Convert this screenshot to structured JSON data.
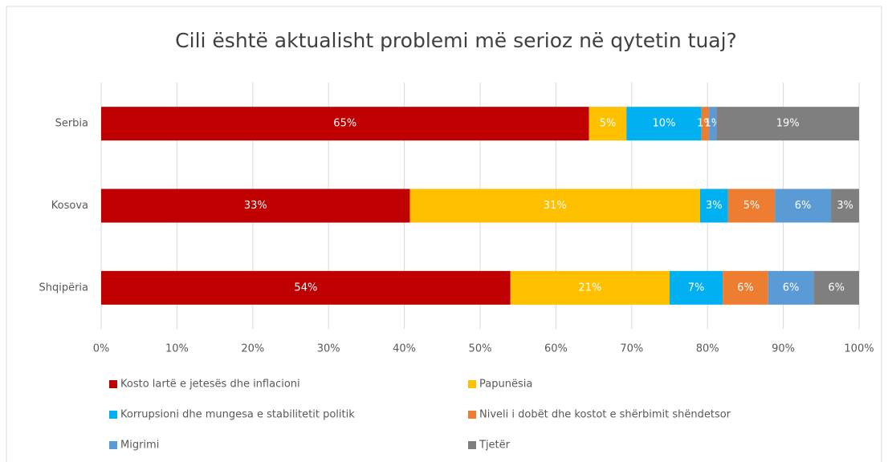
{
  "chart_data": {
    "type": "bar",
    "orientation": "horizontal",
    "stacking": "percent",
    "title": "Cili është aktualisht  problemi më serioz në qytetin tuaj?",
    "categories": [
      "Serbia",
      "Kosova",
      "Shqipëria"
    ],
    "series": [
      {
        "name": "Kosto lartë e jetesës dhe inflacioni",
        "color": "#c00000",
        "values": [
          65,
          33,
          54
        ],
        "value_labels": [
          "65%",
          "33%",
          "54%"
        ]
      },
      {
        "name": "Papunësia",
        "color": "#ffc000",
        "values": [
          5,
          31,
          21
        ],
        "value_labels": [
          "5%",
          "31%",
          "21%"
        ]
      },
      {
        "name": "Korrupsioni dhe mungesa e stabilitetit politik",
        "color": "#00b0f0",
        "values": [
          10,
          3,
          7
        ],
        "value_labels": [
          "10%",
          "3%",
          "7%"
        ]
      },
      {
        "name": "Niveli i dobët dhe kostot e shërbimit shëndetsor",
        "color": "#ed7d31",
        "values": [
          1,
          5,
          6
        ],
        "value_labels": [
          "1%",
          "5%",
          "6%"
        ]
      },
      {
        "name": "Migrimi",
        "color": "#5b9bd5",
        "values": [
          1,
          6,
          6
        ],
        "value_labels": [
          "1%",
          "6%",
          "6%"
        ]
      },
      {
        "name": "Tjetër",
        "color": "#7f7f7f",
        "values": [
          19,
          3,
          6
        ],
        "value_labels": [
          "19%",
          "3%",
          "6%"
        ]
      }
    ],
    "xlim": [
      0,
      100
    ],
    "xticks": [
      {
        "value": 0,
        "label": "0%"
      },
      {
        "value": 10,
        "label": "10%"
      },
      {
        "value": 20,
        "label": "20%"
      },
      {
        "value": 30,
        "label": "30%"
      },
      {
        "value": 40,
        "label": "40%"
      },
      {
        "value": 50,
        "label": "50%"
      },
      {
        "value": 60,
        "label": "60%"
      },
      {
        "value": 70,
        "label": "70%"
      },
      {
        "value": 80,
        "label": "80%"
      },
      {
        "value": 90,
        "label": "90%"
      },
      {
        "value": 100,
        "label": "100%"
      }
    ],
    "grid": true,
    "legend": "bottom"
  }
}
